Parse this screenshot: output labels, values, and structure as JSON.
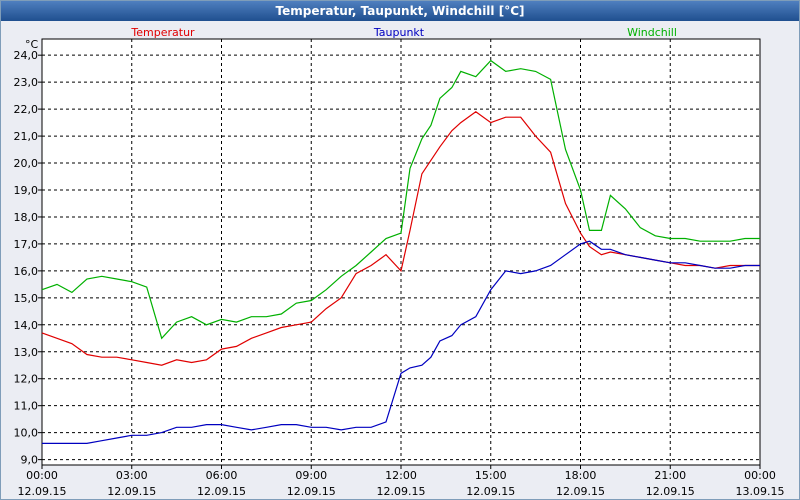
{
  "window": {
    "title": "Temperatur, Taupunkt, Windchill [°C]"
  },
  "colors": {
    "temperatur": "#e00000",
    "taupunkt": "#0000c0",
    "windchill": "#00b000",
    "plot_bg": "#ffffff",
    "grid": "#000000"
  },
  "chart_data": {
    "type": "line",
    "title": "Temperatur, Taupunkt, Windchill [°C]",
    "ylabel": "°C",
    "xlabel": "",
    "ylim": [
      8.8,
      24.6
    ],
    "xlim": [
      0,
      24
    ],
    "yticks": [
      "9,0",
      "10,0",
      "11,0",
      "12,0",
      "13,0",
      "14,0",
      "15,0",
      "16,0",
      "17,0",
      "18,0",
      "19,0",
      "20,0",
      "21,0",
      "22,0",
      "23,0",
      "24,0"
    ],
    "xticks": [
      {
        "time": "00:00",
        "date": "12.09.15"
      },
      {
        "time": "03:00",
        "date": "12.09.15"
      },
      {
        "time": "06:00",
        "date": "12.09.15"
      },
      {
        "time": "09:00",
        "date": "12.09.15"
      },
      {
        "time": "12:00",
        "date": "12.09.15"
      },
      {
        "time": "15:00",
        "date": "12.09.15"
      },
      {
        "time": "18:00",
        "date": "12.09.15"
      },
      {
        "time": "21:00",
        "date": "12.09.15"
      },
      {
        "time": "00:00",
        "date": "13.09.15"
      }
    ],
    "grid": true,
    "legend_placement": "top",
    "series": [
      {
        "name": "Temperatur",
        "x": [
          0,
          0.5,
          1,
          1.5,
          2,
          2.5,
          3,
          3.5,
          4,
          4.5,
          5,
          5.5,
          6,
          6.5,
          7,
          7.5,
          8,
          8.5,
          9,
          9.5,
          10,
          10.5,
          11,
          11.5,
          12,
          12.3,
          12.7,
          13,
          13.3,
          13.7,
          14,
          14.5,
          15,
          15.5,
          16,
          16.5,
          17,
          17.5,
          18,
          18.3,
          18.7,
          19,
          19.5,
          20,
          20.5,
          21,
          21.5,
          22,
          22.5,
          23,
          23.5,
          24
        ],
        "y": [
          13.7,
          13.5,
          13.3,
          12.9,
          12.8,
          12.8,
          12.7,
          12.6,
          12.5,
          12.7,
          12.6,
          12.7,
          13.1,
          13.2,
          13.5,
          13.7,
          13.9,
          14.0,
          14.1,
          14.6,
          15.0,
          15.9,
          16.2,
          16.6,
          16.0,
          17.5,
          19.6,
          20.1,
          20.6,
          21.2,
          21.5,
          21.9,
          21.5,
          21.7,
          21.7,
          21.0,
          20.4,
          18.5,
          17.4,
          16.9,
          16.6,
          16.7,
          16.6,
          16.5,
          16.4,
          16.3,
          16.2,
          16.2,
          16.1,
          16.2,
          16.2,
          16.2
        ]
      },
      {
        "name": "Taupunkt",
        "x": [
          0,
          0.5,
          1,
          1.5,
          2,
          2.5,
          3,
          3.5,
          4,
          4.5,
          5,
          5.5,
          6,
          6.5,
          7,
          7.5,
          8,
          8.5,
          9,
          9.5,
          10,
          10.5,
          11,
          11.5,
          12,
          12.3,
          12.7,
          13,
          13.3,
          13.7,
          14,
          14.5,
          15,
          15.5,
          16,
          16.5,
          17,
          17.5,
          18,
          18.3,
          18.7,
          19,
          19.5,
          20,
          20.5,
          21,
          21.5,
          22,
          22.5,
          23,
          23.5,
          24
        ],
        "y": [
          9.6,
          9.6,
          9.6,
          9.6,
          9.7,
          9.8,
          9.9,
          9.9,
          10.0,
          10.2,
          10.2,
          10.3,
          10.3,
          10.2,
          10.1,
          10.2,
          10.3,
          10.3,
          10.2,
          10.2,
          10.1,
          10.2,
          10.2,
          10.4,
          12.2,
          12.4,
          12.5,
          12.8,
          13.4,
          13.6,
          14.0,
          14.3,
          15.3,
          16.0,
          15.9,
          16.0,
          16.2,
          16.6,
          17.0,
          17.1,
          16.8,
          16.8,
          16.6,
          16.5,
          16.4,
          16.3,
          16.3,
          16.2,
          16.1,
          16.1,
          16.2,
          16.2
        ]
      },
      {
        "name": "Windchill",
        "x": [
          0,
          0.5,
          1,
          1.5,
          2,
          2.5,
          3,
          3.5,
          4,
          4.5,
          5,
          5.5,
          6,
          6.5,
          7,
          7.5,
          8,
          8.5,
          9,
          9.5,
          10,
          10.5,
          11,
          11.5,
          12,
          12.3,
          12.7,
          13,
          13.3,
          13.7,
          14,
          14.5,
          15,
          15.5,
          16,
          16.5,
          17,
          17.5,
          18,
          18.3,
          18.7,
          19,
          19.5,
          20,
          20.5,
          21,
          21.5,
          22,
          22.5,
          23,
          23.5,
          24
        ],
        "y": [
          15.3,
          15.5,
          15.2,
          15.7,
          15.8,
          15.7,
          15.6,
          15.4,
          13.5,
          14.1,
          14.3,
          14.0,
          14.2,
          14.1,
          14.3,
          14.3,
          14.4,
          14.8,
          14.9,
          15.3,
          15.8,
          16.2,
          16.7,
          17.2,
          17.4,
          19.8,
          20.9,
          21.4,
          22.4,
          22.8,
          23.4,
          23.2,
          23.8,
          23.4,
          23.5,
          23.4,
          23.1,
          20.5,
          19.0,
          17.5,
          17.5,
          18.8,
          18.3,
          17.6,
          17.3,
          17.2,
          17.2,
          17.1,
          17.1,
          17.1,
          17.2,
          17.2
        ]
      }
    ]
  }
}
